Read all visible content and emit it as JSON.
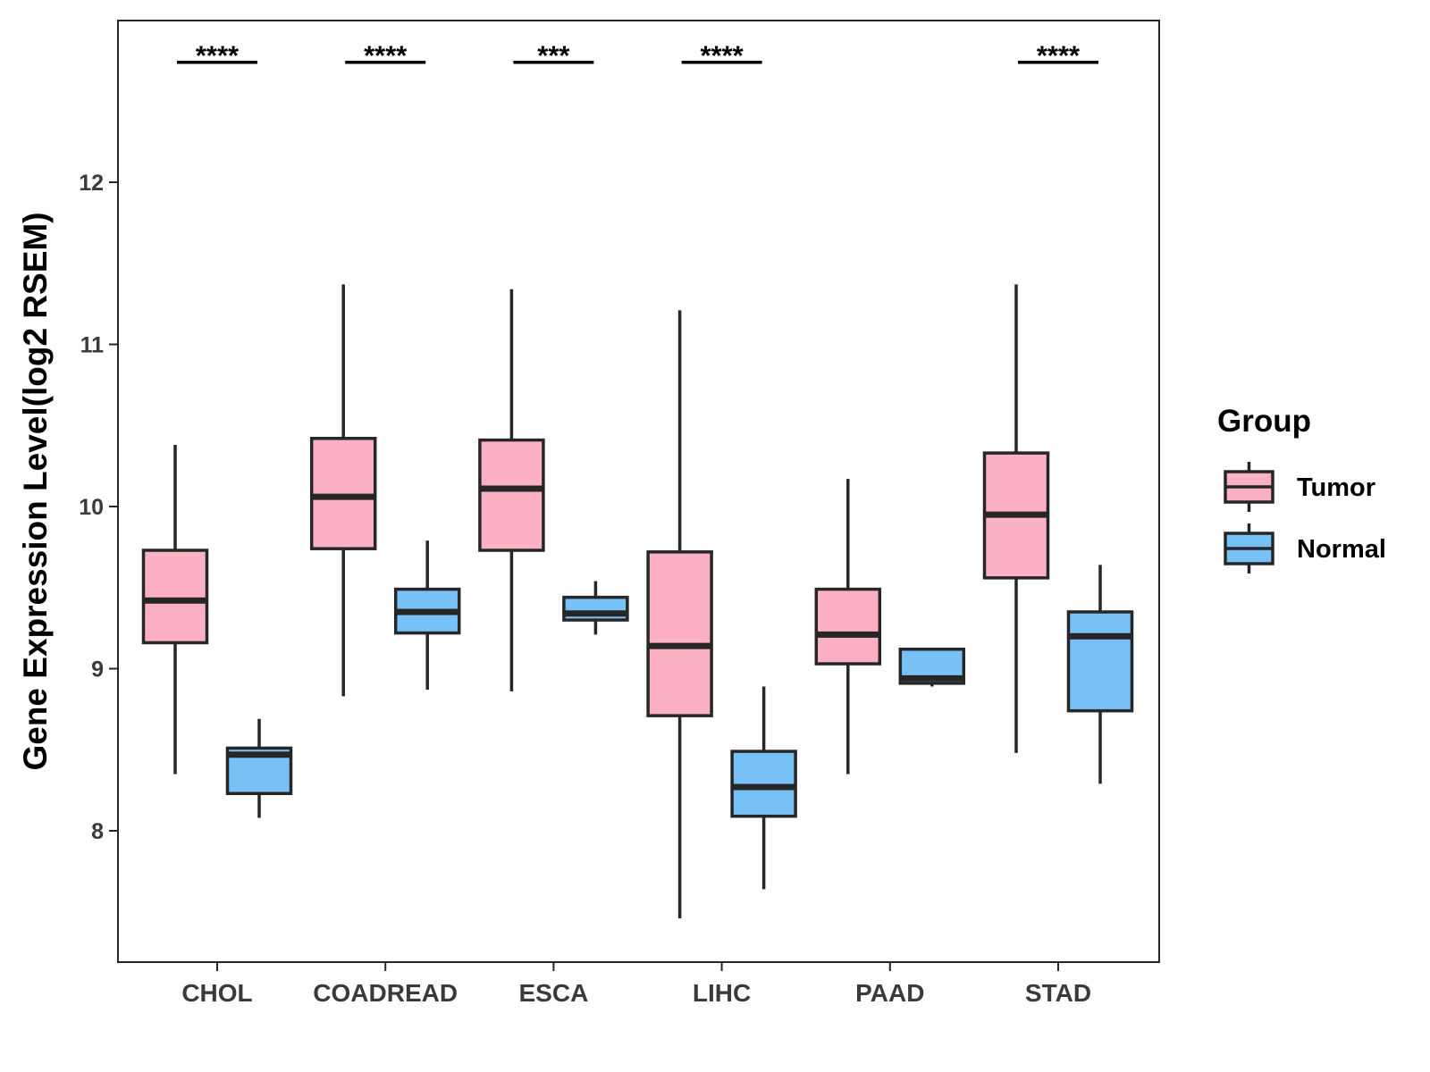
{
  "chart_data": {
    "type": "boxplot",
    "title": "",
    "xlabel": "",
    "ylabel": "Gene Expression Level(log2 RSEM)",
    "ylim": [
      7.35,
      13.15
    ],
    "yticks": [
      8,
      9,
      10,
      11,
      12
    ],
    "categories": [
      "CHOL",
      "COADREAD",
      "ESCA",
      "LIHC",
      "PAAD",
      "STAD"
    ],
    "colors": {
      "Tumor": "#fbb1c3",
      "Normal": "#78c1f7",
      "stroke": "#262626"
    },
    "legend": {
      "title": "Group",
      "position": "right",
      "entries": [
        "Tumor",
        "Normal"
      ]
    },
    "significance": [
      "****",
      "****",
      "***",
      "****",
      "",
      "****"
    ],
    "sig_level": 12.74,
    "series": [
      {
        "name": "Tumor",
        "boxes": [
          {
            "min": 8.35,
            "q1": 9.16,
            "median": 9.42,
            "q3": 9.73,
            "max": 10.38
          },
          {
            "min": 8.83,
            "q1": 9.74,
            "median": 10.06,
            "q3": 10.42,
            "max": 11.37
          },
          {
            "min": 8.86,
            "q1": 9.73,
            "median": 10.11,
            "q3": 10.41,
            "max": 11.34
          },
          {
            "min": 7.46,
            "q1": 8.71,
            "median": 9.14,
            "q3": 9.72,
            "max": 11.21
          },
          {
            "min": 8.35,
            "q1": 9.03,
            "median": 9.21,
            "q3": 9.49,
            "max": 10.17
          },
          {
            "min": 8.48,
            "q1": 9.56,
            "median": 9.95,
            "q3": 10.33,
            "max": 11.37
          }
        ]
      },
      {
        "name": "Normal",
        "boxes": [
          {
            "min": 8.08,
            "q1": 8.23,
            "median": 8.47,
            "q3": 8.51,
            "max": 8.69
          },
          {
            "min": 8.87,
            "q1": 9.22,
            "median": 9.35,
            "q3": 9.49,
            "max": 9.79
          },
          {
            "min": 9.21,
            "q1": 9.3,
            "median": 9.34,
            "q3": 9.44,
            "max": 9.54
          },
          {
            "min": 7.64,
            "q1": 8.09,
            "median": 8.27,
            "q3": 8.49,
            "max": 8.89
          },
          {
            "min": 8.89,
            "q1": 8.91,
            "median": 8.94,
            "q3": 9.12,
            "max": 9.12
          },
          {
            "min": 8.29,
            "q1": 8.74,
            "median": 9.2,
            "q3": 9.35,
            "max": 9.64
          }
        ]
      }
    ]
  }
}
